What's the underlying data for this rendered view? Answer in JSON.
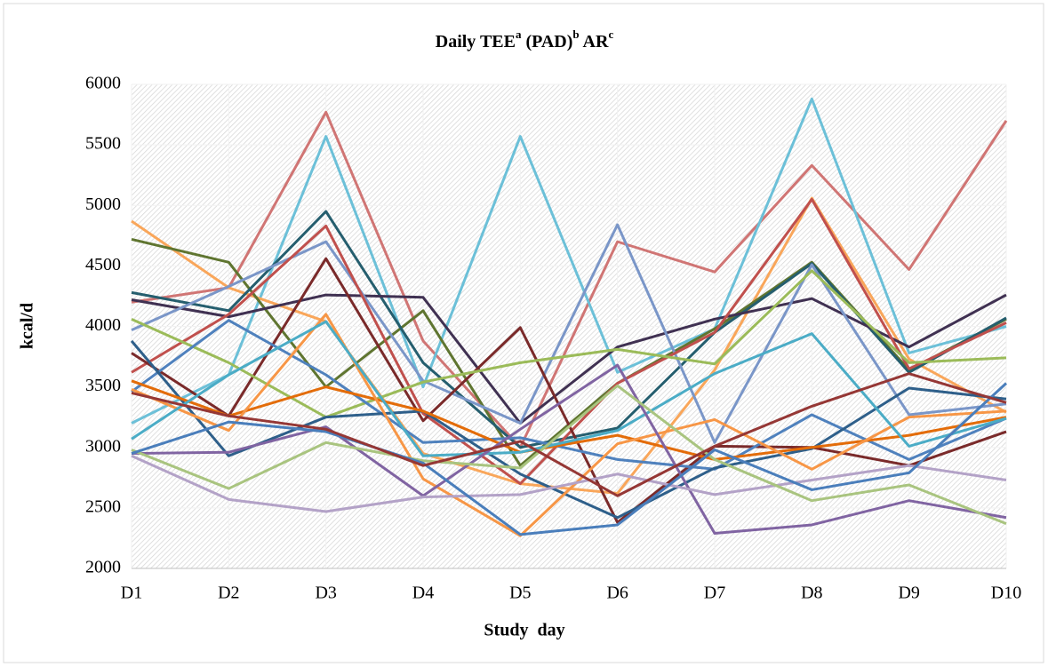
{
  "chart_data": {
    "type": "line",
    "title": [
      "Daily TEE",
      "a",
      " (PAD)",
      "b",
      " AR",
      "c"
    ],
    "x_label": "Study  day",
    "y_label": "kcal/d",
    "categories": [
      "D1",
      "D2",
      "D3",
      "D4",
      "D5",
      "D6",
      "D7",
      "D8",
      "D9",
      "D10"
    ],
    "ylim": [
      2000,
      6000
    ],
    "yticks": [
      2000,
      2500,
      3000,
      3500,
      4000,
      4500,
      5000,
      5500,
      6000
    ],
    "grid": true,
    "series": [
      {
        "color": "#d07574",
        "values": [
          4200,
          4320,
          5770,
          3880,
          3000,
          4700,
          4450,
          5330,
          4470,
          5700
        ]
      },
      {
        "color": "#6cc0d8",
        "values": [
          3200,
          3600,
          5570,
          3500,
          5570,
          3620,
          3980,
          5880,
          3780,
          4000
        ]
      },
      {
        "color": "#f9a65a",
        "values": [
          4870,
          4320,
          4040,
          2950,
          2700,
          2620,
          3640,
          5060,
          3730,
          3290
        ]
      },
      {
        "color": "#5f7530",
        "values": [
          4720,
          4530,
          3500,
          4130,
          2850,
          3530,
          3980,
          4530,
          3640,
          4060
        ]
      },
      {
        "color": "#255e6e",
        "values": [
          4280,
          4130,
          4950,
          3700,
          3000,
          3160,
          3950,
          4520,
          3620,
          4070
        ]
      },
      {
        "color": "#403152",
        "values": [
          4220,
          4080,
          4260,
          4240,
          3200,
          3830,
          4060,
          4230,
          3830,
          4260
        ]
      },
      {
        "color": "#7a96c8",
        "values": [
          3970,
          4330,
          4700,
          3550,
          3200,
          4840,
          3040,
          4510,
          3270,
          3360
        ]
      },
      {
        "color": "#c0504d",
        "values": [
          3620,
          4100,
          4830,
          3280,
          2700,
          3530,
          3950,
          5050,
          3650,
          4030
        ]
      },
      {
        "color": "#7a2a2a",
        "values": [
          3780,
          3260,
          4560,
          3220,
          3990,
          2380,
          3010,
          3000,
          2850,
          3130
        ]
      },
      {
        "color": "#9bbb59",
        "values": [
          4060,
          3700,
          3250,
          3540,
          3700,
          3810,
          3690,
          4460,
          3700,
          3740
        ]
      },
      {
        "color": "#4f81bd",
        "values": [
          3460,
          4050,
          3600,
          3040,
          3080,
          2900,
          2820,
          3270,
          2900,
          3240
        ]
      },
      {
        "color": "#2e5f8a",
        "values": [
          3880,
          2930,
          3250,
          3300,
          2780,
          2420,
          2830,
          2990,
          3490,
          3400
        ]
      },
      {
        "color": "#e36c09",
        "values": [
          3550,
          3260,
          3500,
          3300,
          2960,
          3100,
          2900,
          3000,
          3100,
          3250
        ]
      },
      {
        "color": "#f79646",
        "values": [
          3480,
          3140,
          4100,
          2740,
          2270,
          3030,
          3230,
          2820,
          3250,
          3300
        ]
      },
      {
        "color": "#4bacc6",
        "values": [
          3070,
          3600,
          4040,
          2930,
          2960,
          3140,
          3610,
          3940,
          3010,
          3240
        ]
      },
      {
        "color": "#8064a2",
        "values": [
          2950,
          2960,
          3170,
          2600,
          3150,
          3680,
          2290,
          2360,
          2560,
          2420
        ]
      },
      {
        "color": "#b3a2c7",
        "values": [
          2930,
          2570,
          2470,
          2590,
          2610,
          2780,
          2610,
          2730,
          2850,
          2730
        ]
      },
      {
        "color": "#a9c47f",
        "values": [
          2980,
          2660,
          3040,
          2890,
          2830,
          3510,
          2900,
          2560,
          2690,
          2370
        ]
      },
      {
        "color": "#4a7ebb",
        "values": [
          2950,
          3210,
          3130,
          2870,
          2280,
          2360,
          2980,
          2650,
          2790,
          3530
        ]
      },
      {
        "color": "#953735",
        "values": [
          3450,
          3260,
          3150,
          2850,
          3050,
          2600,
          3010,
          3340,
          3610,
          3370
        ]
      }
    ]
  }
}
